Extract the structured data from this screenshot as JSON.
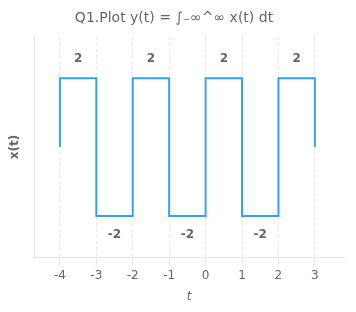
{
  "chart_data": {
    "type": "line",
    "title": "Q1.Plot y(t) = ∫₋∞^∞ x(t) dt",
    "xlabel": "t",
    "ylabel": "x(t)",
    "x": [
      -4,
      -4,
      -3,
      -3,
      -2,
      -2,
      -1,
      -1,
      0,
      0,
      1,
      1,
      2,
      2,
      3,
      3
    ],
    "values": [
      0,
      2,
      2,
      -2,
      -2,
      2,
      2,
      -2,
      -2,
      2,
      2,
      -2,
      -2,
      2,
      2,
      0
    ],
    "xlim": [
      -4.7,
      3.8
    ],
    "ylim": [
      -3.2,
      3.2
    ],
    "xticks": [
      -4,
      -3,
      -2,
      -1,
      0,
      1,
      2,
      3
    ],
    "yticks": [],
    "tick_labels": "x",
    "grid": "x",
    "annotations": [
      {
        "x": -3.5,
        "y": 2.55,
        "text": "2"
      },
      {
        "x": -2.5,
        "y": -2.55,
        "text": "-2"
      },
      {
        "x": -1.5,
        "y": 2.55,
        "text": "2"
      },
      {
        "x": -0.5,
        "y": -2.55,
        "text": "-2"
      },
      {
        "x": 0.5,
        "y": 2.55,
        "text": "2"
      },
      {
        "x": 1.5,
        "y": -2.55,
        "text": "-2"
      },
      {
        "x": 2.5,
        "y": 2.55,
        "text": "2"
      }
    ]
  }
}
